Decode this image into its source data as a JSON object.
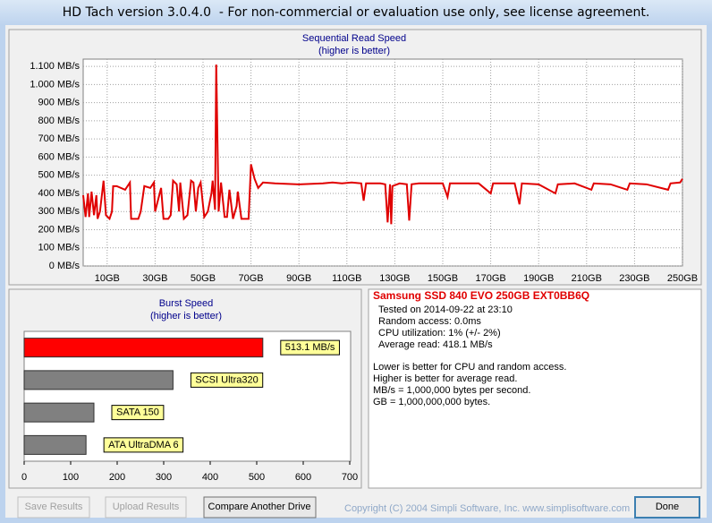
{
  "window": {
    "title": "HD Tach version 3.0.4.0  - For non-commercial or evaluation use only, see license agreement."
  },
  "chart_data": [
    {
      "type": "line",
      "title": "Sequential Read Speed",
      "subtitle": "(higher is better)",
      "x": [
        0,
        1,
        2,
        2.5,
        3.5,
        4.5,
        5.5,
        6,
        7,
        8.5,
        9.5,
        11,
        12,
        12.5,
        14,
        17.5,
        19.5,
        20,
        23,
        24,
        25.5,
        28,
        29.5,
        30,
        32.5,
        33.5,
        35.5,
        36.5,
        37.5,
        39,
        40,
        40.5,
        42,
        43.5,
        45,
        46,
        47,
        48,
        49,
        50.5,
        52,
        53.5,
        54,
        55,
        55.5,
        56.5,
        57.5,
        59,
        60,
        61,
        62.5,
        64,
        64.5,
        66,
        68,
        69,
        70,
        71.5,
        73,
        75,
        80,
        90,
        100,
        104,
        108,
        112,
        116,
        117,
        118,
        124,
        126,
        127,
        128,
        128.5,
        129,
        132,
        135,
        136,
        137,
        140,
        150,
        152,
        153,
        165,
        170,
        171,
        180,
        182,
        183,
        190,
        197,
        198,
        205,
        212,
        213,
        220,
        227,
        228,
        235,
        244,
        245,
        249,
        250
      ],
      "series": [
        {
          "color": "#e00000",
          "values": [
            390,
            270,
            400,
            270,
            410,
            280,
            390,
            260,
            300,
            470,
            280,
            260,
            300,
            440,
            440,
            420,
            460,
            260,
            260,
            300,
            440,
            430,
            460,
            300,
            430,
            260,
            260,
            280,
            470,
            450,
            300,
            460,
            260,
            280,
            470,
            460,
            300,
            430,
            460,
            270,
            300,
            400,
            470,
            310,
            1110,
            300,
            460,
            270,
            270,
            420,
            260,
            330,
            410,
            260,
            260,
            260,
            560,
            480,
            430,
            460,
            455,
            450,
            455,
            460,
            455,
            460,
            455,
            360,
            455,
            455,
            450,
            240,
            450,
            230,
            440,
            455,
            450,
            250,
            450,
            455,
            455,
            380,
            455,
            455,
            400,
            455,
            455,
            340,
            455,
            450,
            400,
            450,
            455,
            420,
            455,
            450,
            420,
            455,
            450,
            420,
            455,
            460,
            480
          ]
        }
      ],
      "xlim": [
        0,
        250
      ],
      "xticks": [
        {
          "value": 10,
          "label": "10GB"
        },
        {
          "value": 30,
          "label": "30GB"
        },
        {
          "value": 50,
          "label": "50GB"
        },
        {
          "value": 70,
          "label": "70GB"
        },
        {
          "value": 90,
          "label": "90GB"
        },
        {
          "value": 110,
          "label": "110GB"
        },
        {
          "value": 130,
          "label": "130GB"
        },
        {
          "value": 150,
          "label": "150GB"
        },
        {
          "value": 170,
          "label": "170GB"
        },
        {
          "value": 190,
          "label": "190GB"
        },
        {
          "value": 210,
          "label": "210GB"
        },
        {
          "value": 230,
          "label": "230GB"
        },
        {
          "value": 250,
          "label": "250GB"
        }
      ],
      "ylim": [
        0,
        1140
      ],
      "yticks": [
        {
          "value": 0,
          "label": "0 MB/s"
        },
        {
          "value": 100,
          "label": "100 MB/s"
        },
        {
          "value": 200,
          "label": "200 MB/s"
        },
        {
          "value": 300,
          "label": "300 MB/s"
        },
        {
          "value": 400,
          "label": "400 MB/s"
        },
        {
          "value": 500,
          "label": "500 MB/s"
        },
        {
          "value": 600,
          "label": "600 MB/s"
        },
        {
          "value": 700,
          "label": "700 MB/s"
        },
        {
          "value": 800,
          "label": "800 MB/s"
        },
        {
          "value": 900,
          "label": "900 MB/s"
        },
        {
          "value": 1000,
          "label": "1.000 MB/s"
        },
        {
          "value": 1100,
          "label": "1.100 MB/s"
        }
      ],
      "grid": true
    },
    {
      "type": "bar",
      "orientation": "horizontal",
      "title": "Burst Speed",
      "subtitle": "(higher is better)",
      "categories": [
        null,
        "SCSI Ultra320",
        "SATA 150",
        "ATA UltraDMA 6"
      ],
      "values": [
        513.1,
        320,
        150,
        133
      ],
      "value_labels": [
        "513.1 MB/s",
        null,
        null,
        null
      ],
      "colors": [
        "#ff0000",
        "#808080",
        "#808080",
        "#808080"
      ],
      "xlim": [
        0,
        700
      ],
      "xticks": [
        0,
        100,
        200,
        300,
        400,
        500,
        600,
        700
      ]
    }
  ],
  "results": {
    "drive": "Samsung SSD 840 EVO 250GB EXT0BB6Q",
    "details": [
      "Tested on 2014-09-22 at 23:10",
      "Random access: 0.0ms",
      "CPU utilization: 1% (+/- 2%)",
      "Average read: 418.1 MB/s"
    ],
    "notes": [
      "Lower is better for CPU and random access.",
      "Higher is better for average read.",
      "MB/s = 1,000,000 bytes per second.",
      "GB = 1,000,000,000 bytes."
    ]
  },
  "buttons": [
    "Save Results",
    "Upload Results",
    "Compare Another Drive",
    "Done"
  ],
  "copyright": "Copyright (C) 2004 Simpli Software, Inc. www.simplisoftware.com"
}
